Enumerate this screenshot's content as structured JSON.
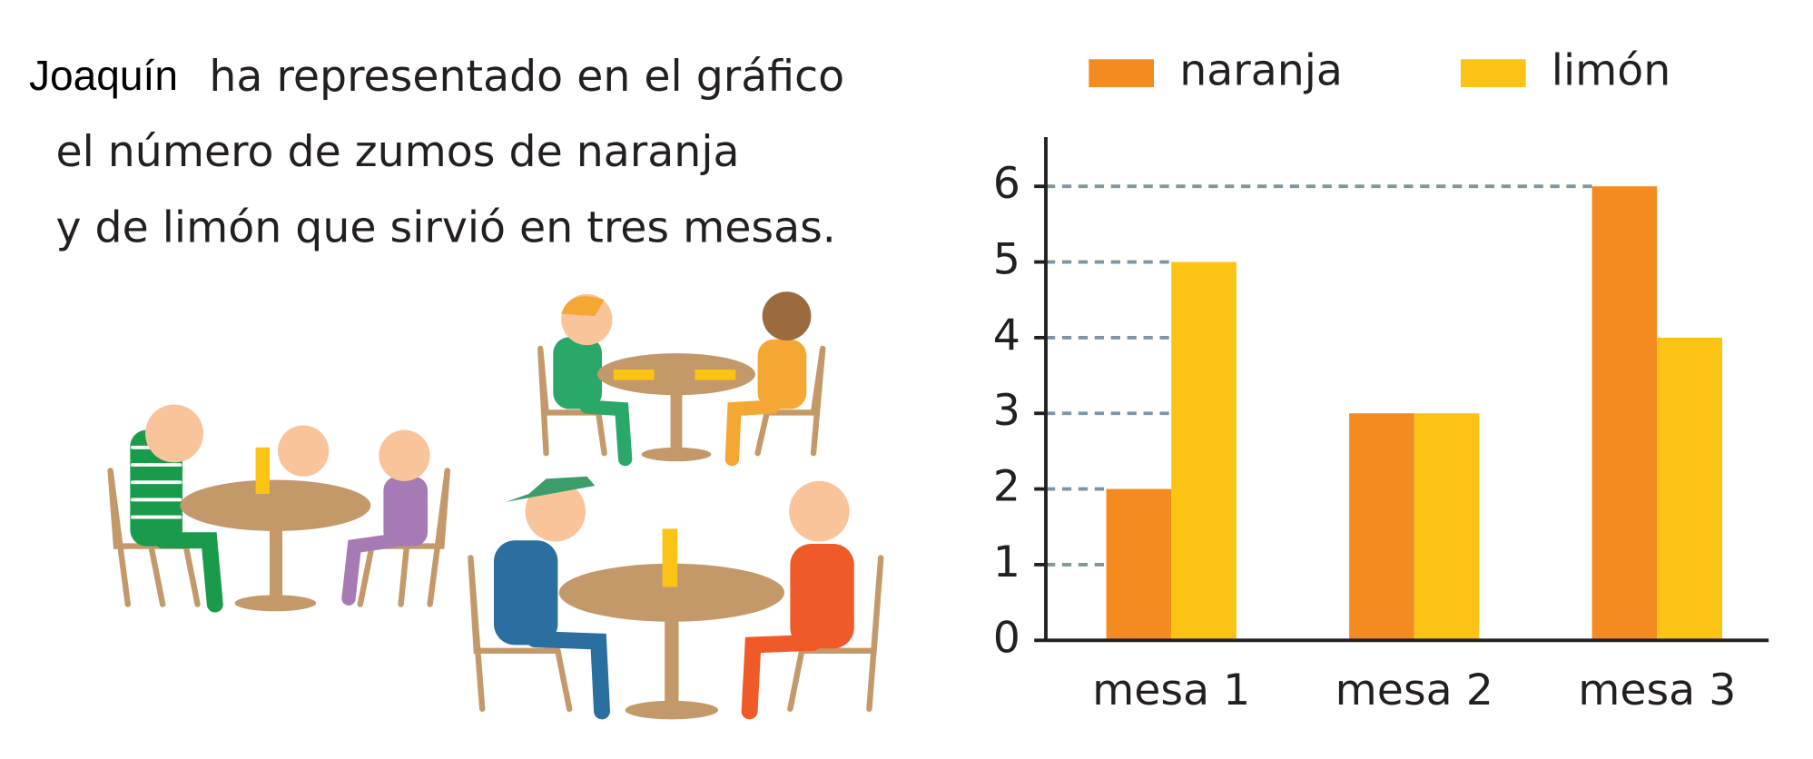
{
  "text": {
    "name": "Joaquín",
    "lines": [
      "ha representado en el gráfico",
      "el número de zumos de naranja",
      "y de limón que sirvió en tres mesas."
    ]
  },
  "chart_data": {
    "type": "bar",
    "categories": [
      "mesa 1",
      "mesa 2",
      "mesa 3"
    ],
    "series": [
      {
        "name": "naranja",
        "color": "#f38b20",
        "values": [
          2,
          3,
          6
        ]
      },
      {
        "name": "limón",
        "color": "#fbc314",
        "values": [
          5,
          3,
          4
        ]
      }
    ],
    "ylim": [
      0,
      6.65
    ],
    "yticks": [
      0,
      1,
      2,
      3,
      4,
      5,
      6
    ],
    "grid": true
  }
}
